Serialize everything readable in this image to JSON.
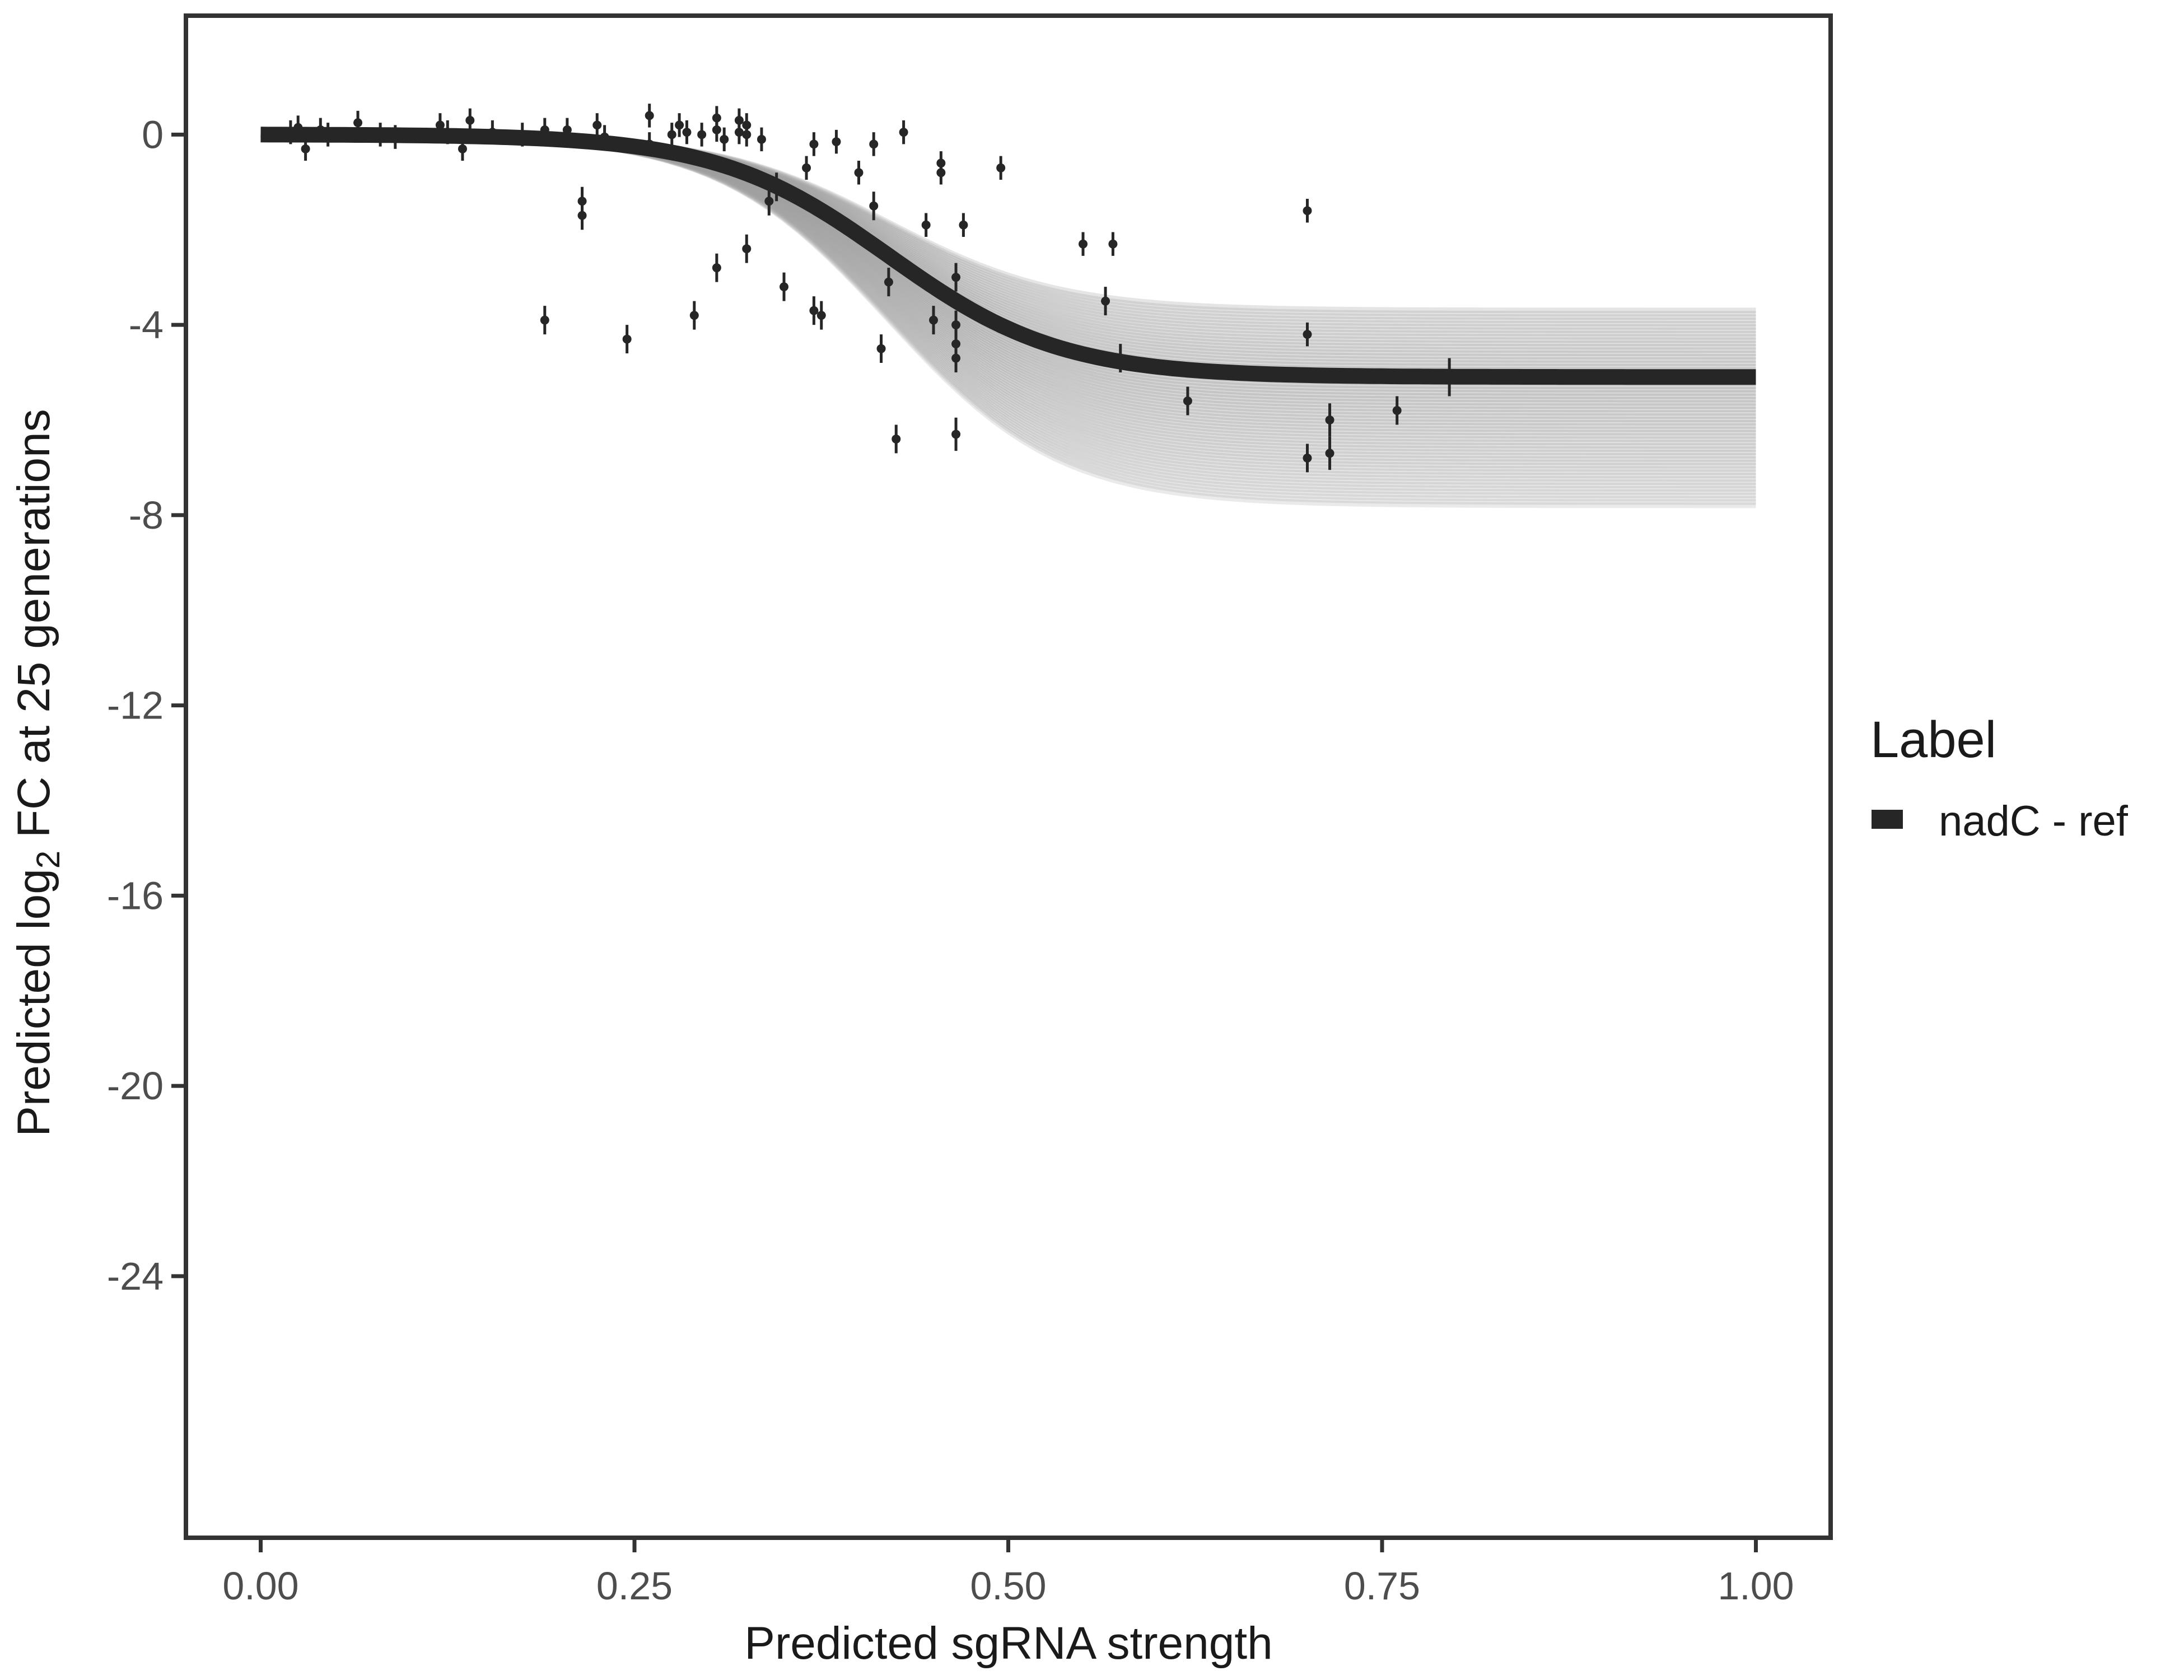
{
  "chart_data": {
    "type": "scatter",
    "title": "",
    "xlabel": "Predicted sgRNA strength",
    "ylabel": {
      "prefix": "Predicted  log",
      "subscript": "2",
      "suffix": " FC at 25 generations"
    },
    "xlim": [
      -0.1,
      2.1
    ],
    "ylim": [
      -29.5,
      2.5
    ],
    "x_ticks": [
      0.0,
      0.5,
      1.0,
      1.5,
      2.0
    ],
    "x_tick_labels": [
      "0.00",
      "0.25",
      "0.50",
      "0.75",
      "1.00"
    ],
    "y_ticks": [
      0,
      -4,
      -8,
      -12,
      -16,
      -20,
      -24
    ],
    "y_tick_labels": [
      "0",
      "-4",
      "-8",
      "-12",
      "-16",
      "-20",
      "-24"
    ],
    "grid": false,
    "legend": {
      "title": "Label",
      "placement": "right",
      "entries": [
        {
          "label": "nadC - ref",
          "color": "#262626"
        }
      ]
    },
    "colors": {
      "fit": "#262626",
      "ribbon": "#9e9e9e",
      "points": "#262626",
      "frame": "#333333"
    },
    "fit_model": {
      "type": "logistic",
      "asymptote": -5.1,
      "midpoint": 0.84,
      "scale": 0.115,
      "ribbon_spread": [
        -2.7,
        1.4
      ]
    },
    "series": [
      {
        "name": "nadC - ref",
        "points": [
          {
            "x": 0.04,
            "y": 0.05,
            "err": 0.25
          },
          {
            "x": 0.05,
            "y": 0.15,
            "err": 0.25
          },
          {
            "x": 0.06,
            "y": -0.3,
            "err": 0.25
          },
          {
            "x": 0.08,
            "y": 0.1,
            "err": 0.25
          },
          {
            "x": 0.09,
            "y": 0.0,
            "err": 0.25
          },
          {
            "x": 0.13,
            "y": 0.25,
            "err": 0.25
          },
          {
            "x": 0.16,
            "y": 0.0,
            "err": 0.25
          },
          {
            "x": 0.18,
            "y": -0.05,
            "err": 0.25
          },
          {
            "x": 0.24,
            "y": 0.2,
            "err": 0.25
          },
          {
            "x": 0.25,
            "y": 0.05,
            "err": 0.25
          },
          {
            "x": 0.27,
            "y": -0.3,
            "err": 0.25
          },
          {
            "x": 0.28,
            "y": 0.3,
            "err": 0.25
          },
          {
            "x": 0.31,
            "y": 0.05,
            "err": 0.25
          },
          {
            "x": 0.35,
            "y": 0.0,
            "err": 0.25
          },
          {
            "x": 0.38,
            "y": 0.1,
            "err": 0.25
          },
          {
            "x": 0.38,
            "y": -3.9,
            "err": 0.3
          },
          {
            "x": 0.41,
            "y": 0.1,
            "err": 0.25
          },
          {
            "x": 0.43,
            "y": -1.4,
            "err": 0.3
          },
          {
            "x": 0.43,
            "y": -1.7,
            "err": 0.3
          },
          {
            "x": 0.45,
            "y": 0.2,
            "err": 0.25
          },
          {
            "x": 0.46,
            "y": -0.05,
            "err": 0.25
          },
          {
            "x": 0.49,
            "y": -4.3,
            "err": 0.3
          },
          {
            "x": 0.52,
            "y": 0.4,
            "err": 0.25
          },
          {
            "x": 0.52,
            "y": -0.2,
            "err": 0.25
          },
          {
            "x": 0.55,
            "y": 0.0,
            "err": 0.25
          },
          {
            "x": 0.56,
            "y": 0.2,
            "err": 0.25
          },
          {
            "x": 0.57,
            "y": 0.05,
            "err": 0.25
          },
          {
            "x": 0.58,
            "y": -3.8,
            "err": 0.3
          },
          {
            "x": 0.59,
            "y": 0.0,
            "err": 0.25
          },
          {
            "x": 0.61,
            "y": 0.35,
            "err": 0.25
          },
          {
            "x": 0.61,
            "y": 0.1,
            "err": 0.25
          },
          {
            "x": 0.61,
            "y": -2.8,
            "err": 0.3
          },
          {
            "x": 0.62,
            "y": -0.1,
            "err": 0.25
          },
          {
            "x": 0.64,
            "y": 0.3,
            "err": 0.25
          },
          {
            "x": 0.64,
            "y": 0.05,
            "err": 0.25
          },
          {
            "x": 0.65,
            "y": 0.0,
            "err": 0.25
          },
          {
            "x": 0.65,
            "y": 0.2,
            "err": 0.25
          },
          {
            "x": 0.65,
            "y": -2.4,
            "err": 0.3
          },
          {
            "x": 0.67,
            "y": -0.1,
            "err": 0.25
          },
          {
            "x": 0.68,
            "y": -1.4,
            "err": 0.3
          },
          {
            "x": 0.69,
            "y": -1.1,
            "err": 0.3
          },
          {
            "x": 0.7,
            "y": -3.2,
            "err": 0.3
          },
          {
            "x": 0.73,
            "y": -0.7,
            "err": 0.25
          },
          {
            "x": 0.74,
            "y": -0.2,
            "err": 0.25
          },
          {
            "x": 0.74,
            "y": -3.7,
            "err": 0.3
          },
          {
            "x": 0.75,
            "y": -3.8,
            "err": 0.3
          },
          {
            "x": 0.77,
            "y": -0.15,
            "err": 0.25
          },
          {
            "x": 0.8,
            "y": -0.8,
            "err": 0.25
          },
          {
            "x": 0.82,
            "y": -0.2,
            "err": 0.25
          },
          {
            "x": 0.82,
            "y": -1.5,
            "err": 0.3
          },
          {
            "x": 0.83,
            "y": -4.5,
            "err": 0.3
          },
          {
            "x": 0.84,
            "y": -3.1,
            "err": 0.3
          },
          {
            "x": 0.85,
            "y": -6.4,
            "err": 0.3
          },
          {
            "x": 0.86,
            "y": 0.05,
            "err": 0.25
          },
          {
            "x": 0.89,
            "y": -1.9,
            "err": 0.25
          },
          {
            "x": 0.9,
            "y": -3.9,
            "err": 0.3
          },
          {
            "x": 0.91,
            "y": -0.6,
            "err": 0.25
          },
          {
            "x": 0.91,
            "y": -0.8,
            "err": 0.25
          },
          {
            "x": 0.93,
            "y": -3.0,
            "err": 0.3
          },
          {
            "x": 0.93,
            "y": -4.0,
            "err": 0.3
          },
          {
            "x": 0.93,
            "y": -4.4,
            "err": 0.3
          },
          {
            "x": 0.93,
            "y": -4.7,
            "err": 0.3
          },
          {
            "x": 0.93,
            "y": -6.3,
            "err": 0.35
          },
          {
            "x": 0.94,
            "y": -1.9,
            "err": 0.25
          },
          {
            "x": 0.99,
            "y": -0.7,
            "err": 0.25
          },
          {
            "x": 1.1,
            "y": -2.3,
            "err": 0.25
          },
          {
            "x": 1.13,
            "y": -3.5,
            "err": 0.3
          },
          {
            "x": 1.14,
            "y": -2.3,
            "err": 0.25
          },
          {
            "x": 1.15,
            "y": -4.7,
            "err": 0.3
          },
          {
            "x": 1.24,
            "y": -5.6,
            "err": 0.3
          },
          {
            "x": 1.4,
            "y": -1.6,
            "err": 0.25
          },
          {
            "x": 1.4,
            "y": -4.2,
            "err": 0.25
          },
          {
            "x": 1.4,
            "y": -6.8,
            "err": 0.3
          },
          {
            "x": 1.43,
            "y": -6.0,
            "err": 0.35
          },
          {
            "x": 1.43,
            "y": -6.7,
            "err": 0.35
          },
          {
            "x": 1.52,
            "y": -5.8,
            "err": 0.3
          },
          {
            "x": 1.59,
            "y": -5.1,
            "err": 0.4
          }
        ]
      }
    ]
  }
}
